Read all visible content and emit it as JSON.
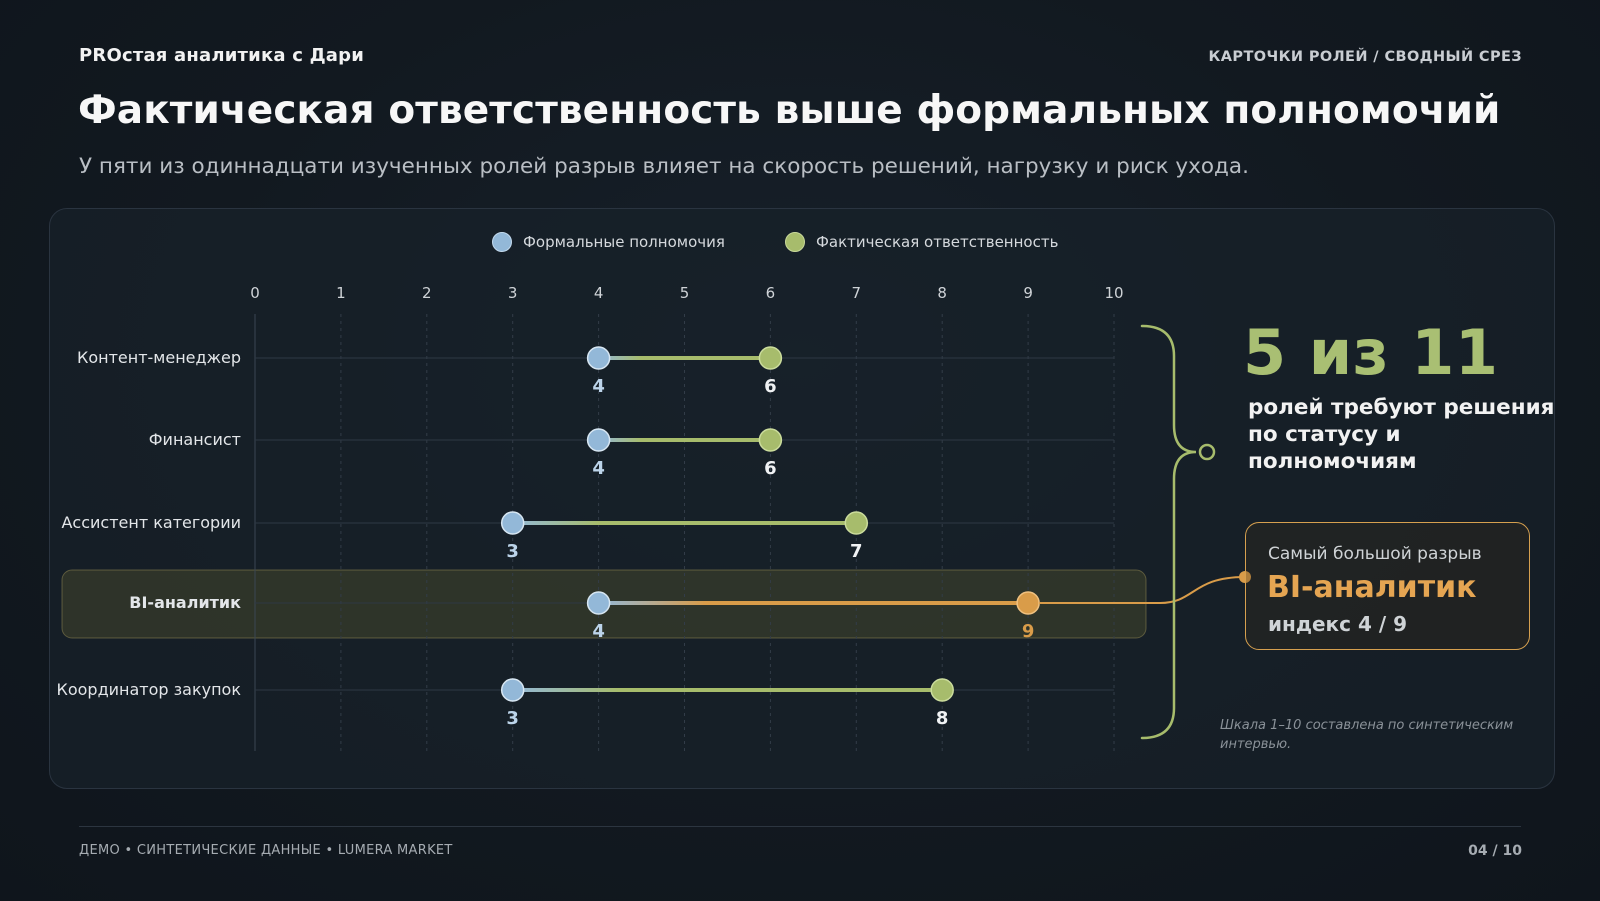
{
  "header": {
    "brand": "PROстая аналитика с Дари",
    "section_tag": "КАРТОЧКИ РОЛЕЙ / СВОДНЫЙ СРЕЗ",
    "title": "Фактическая ответственность выше формальных полномочий",
    "subtitle": "У пяти из одиннадцати изученных ролей разрыв влияет на скорость решений, нагрузку и риск ухода."
  },
  "legend": {
    "formal_label": "Формальные полномочия",
    "actual_label": "Фактическая ответственность"
  },
  "colors": {
    "formal": "#93b8d8",
    "actual": "#a7bc6c",
    "highlight": "#d99c49",
    "background": "#121920"
  },
  "chart_data": {
    "type": "dumbbell",
    "title": "",
    "xlabel": "",
    "ylabel": "",
    "xlim": [
      0,
      10
    ],
    "x_ticks": [
      0,
      1,
      2,
      3,
      4,
      5,
      6,
      7,
      8,
      9,
      10
    ],
    "grid": true,
    "legend_position": "top-center",
    "categories": [
      "Контент-менеджер",
      "Финансист",
      "Ассистент категории",
      "BI-аналитик",
      "Координатор закупок"
    ],
    "series": [
      {
        "name": "Формальные полномочия",
        "values": [
          4,
          4,
          3,
          4,
          3
        ]
      },
      {
        "name": "Фактическая ответственность",
        "values": [
          6,
          6,
          7,
          9,
          8
        ]
      }
    ],
    "highlighted_category": "BI-аналитик"
  },
  "summary": {
    "big_stat": "5 из 11",
    "description": "ролей требуют решения по статусу и полномочиям"
  },
  "gap_card": {
    "label": "Самый большой разрыв",
    "role": "BI-аналитик",
    "index": "индекс 4 / 9"
  },
  "note": "Шкала 1–10 составлена по синтетическим интервью.",
  "footer": {
    "left": "ДЕМО • СИНТЕТИЧЕСКИЕ ДАННЫЕ • LUMERA MARKET",
    "page": "04 / 10"
  }
}
